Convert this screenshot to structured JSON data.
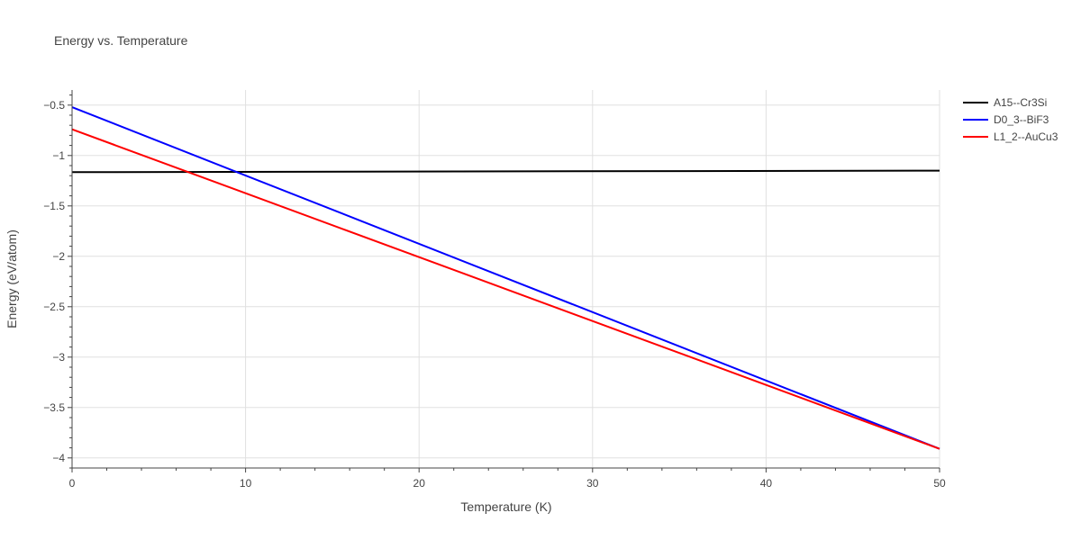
{
  "chart_data": {
    "type": "line",
    "title": "Energy vs. Temperature",
    "xlabel": "Temperature (K)",
    "ylabel": "Energy (eV/atom)",
    "xlim": [
      0,
      50
    ],
    "ylim": [
      -4.1,
      -0.35
    ],
    "xticks": [
      0,
      10,
      20,
      30,
      40,
      50
    ],
    "yticks": [
      -4,
      -3.5,
      -3,
      -2.5,
      -2,
      -1.5,
      -1,
      -0.5
    ],
    "grid": true,
    "legend_position": "right",
    "series": [
      {
        "name": "A15--Cr3Si",
        "color": "#000000",
        "x": [
          0,
          50
        ],
        "y": [
          -1.165,
          -1.15
        ]
      },
      {
        "name": "D0_3--BiF3",
        "color": "#0000ff",
        "x": [
          0,
          50
        ],
        "y": [
          -0.52,
          -3.91
        ]
      },
      {
        "name": "L1_2--AuCu3",
        "color": "#ff0000",
        "x": [
          0,
          50
        ],
        "y": [
          -0.74,
          -3.91
        ]
      }
    ]
  }
}
